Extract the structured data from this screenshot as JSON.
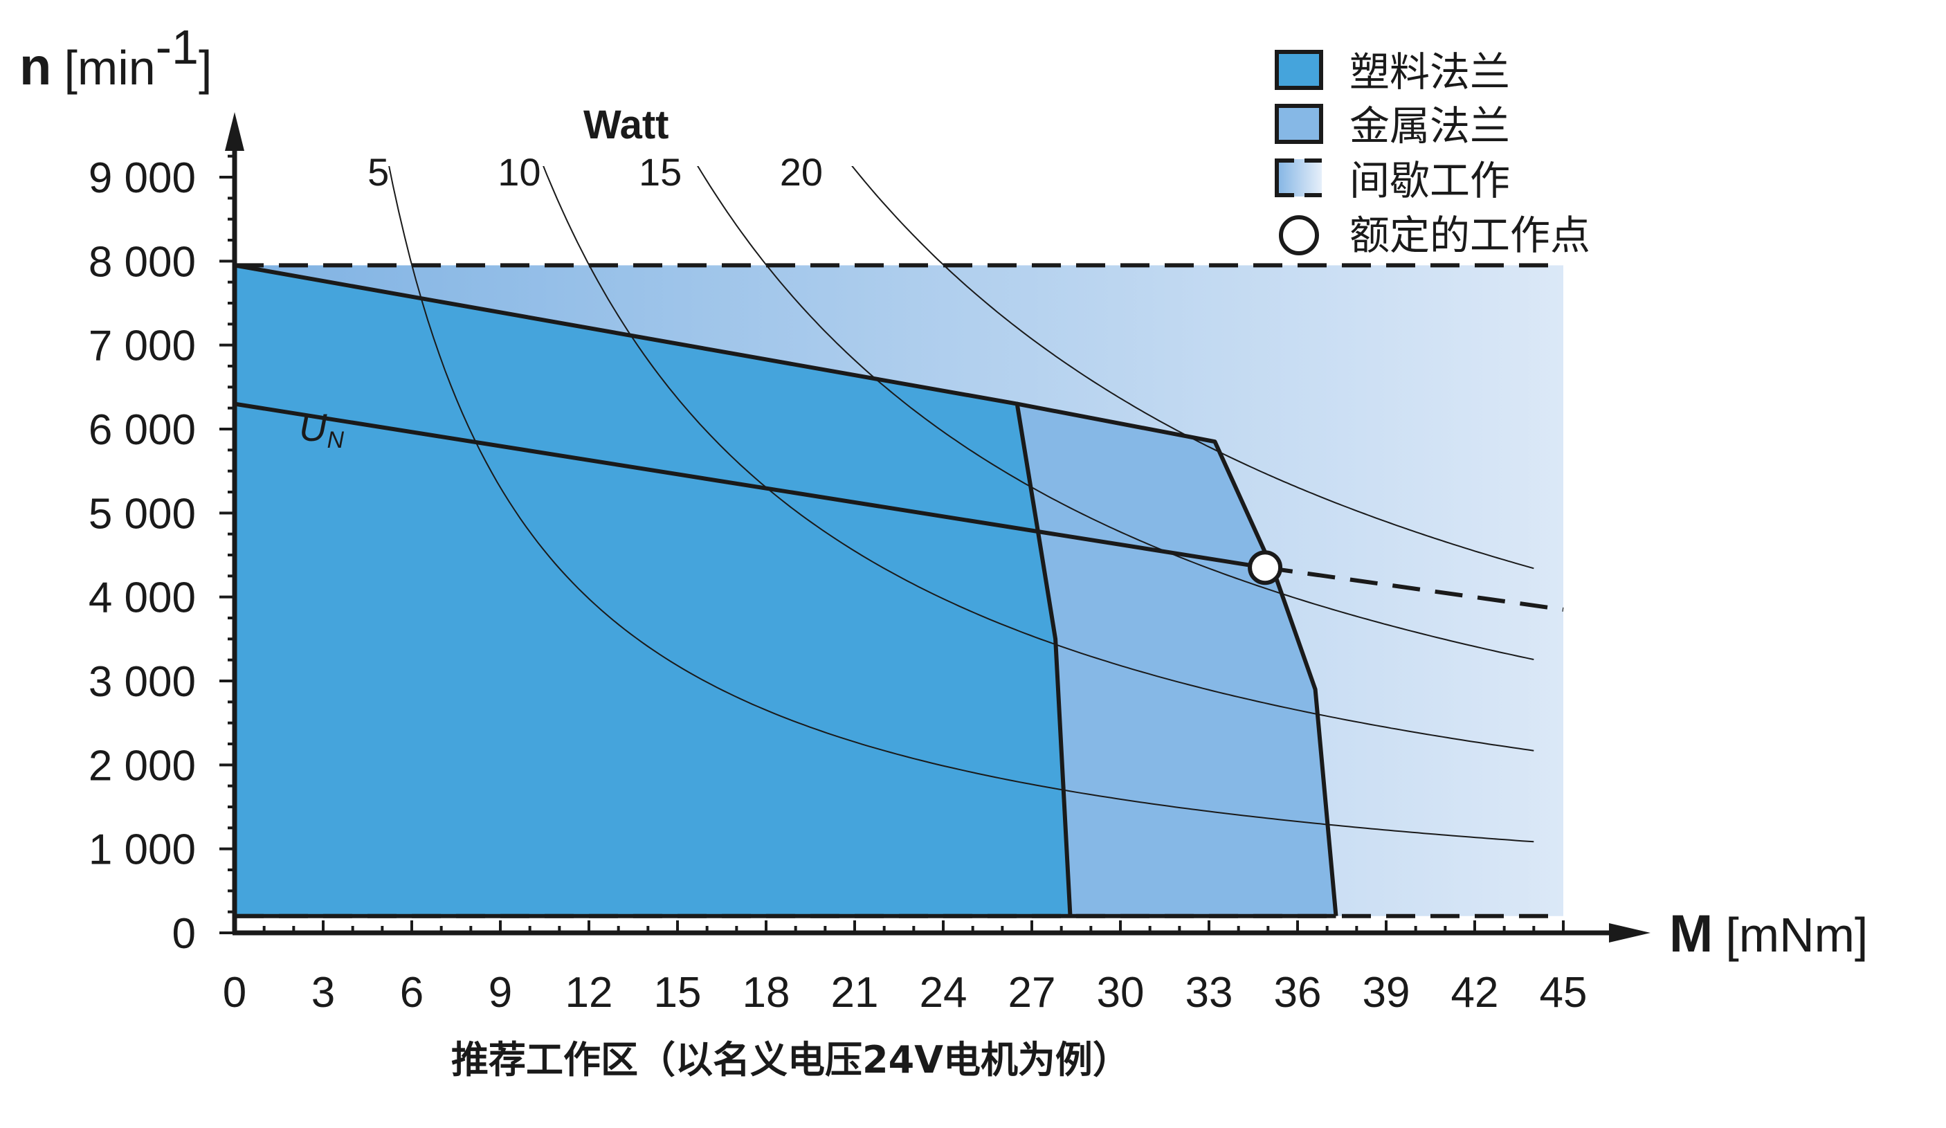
{
  "chart_data": {
    "type": "area",
    "xlabel": {
      "symbol": "M",
      "unit": "[mNm]"
    },
    "ylabel": {
      "symbol": "n",
      "unit_prefix": "[min",
      "unit_sup": "-1",
      "unit_suffix": "]"
    },
    "xlim": [
      0,
      45
    ],
    "ylim": [
      0,
      9000
    ],
    "x_ticks": [
      0,
      3,
      6,
      9,
      12,
      15,
      18,
      21,
      24,
      27,
      30,
      33,
      36,
      39,
      42,
      45
    ],
    "x_tick_labels": [
      "0",
      "3",
      "6",
      "9",
      "12",
      "15",
      "18",
      "21",
      "24",
      "27",
      "30",
      "33",
      "36",
      "39",
      "42",
      "45"
    ],
    "y_ticks": [
      0,
      1000,
      2000,
      3000,
      4000,
      5000,
      6000,
      7000,
      8000,
      9000
    ],
    "y_tick_labels": [
      "0",
      "1 000",
      "2 000",
      "3 000",
      "4 000",
      "5 000",
      "6 000",
      "7 000",
      "8 000",
      "9 000"
    ],
    "power_title": "Watt",
    "power_curves": [
      {
        "label": "5",
        "watts": 5
      },
      {
        "label": "10",
        "watts": 10
      },
      {
        "label": "15",
        "watts": 15
      },
      {
        "label": "20",
        "watts": 20
      }
    ],
    "regions": {
      "plastic_flange": {
        "legend": "塑料法兰",
        "color": "#45a4dc",
        "outline": [
          [
            0,
            7950
          ],
          [
            26.5,
            6300
          ],
          [
            27.2,
            4800
          ],
          [
            27.8,
            3500
          ],
          [
            28.3,
            200
          ],
          [
            0,
            200
          ]
        ]
      },
      "metal_flange": {
        "legend": "金属法兰",
        "color": "#86b8e6",
        "outline": [
          [
            26.5,
            6300
          ],
          [
            33.2,
            5850
          ],
          [
            35.2,
            4300
          ],
          [
            36.6,
            2900
          ],
          [
            37.3,
            200
          ],
          [
            28.3,
            200
          ],
          [
            27.8,
            3500
          ],
          [
            27.2,
            4800
          ]
        ]
      },
      "intermittent": {
        "legend": "间歇工作",
        "color_start": "#7fb2e3",
        "color_end": "#dbe8f7",
        "x_range": [
          0,
          45
        ],
        "y_range": [
          200,
          7950
        ]
      }
    },
    "un_line": {
      "label_main": "U",
      "label_sub": "N",
      "solid": [
        [
          0,
          6300
        ],
        [
          34.9,
          4350
        ]
      ],
      "dashed": [
        [
          34.9,
          4350
        ],
        [
          45,
          3850
        ]
      ]
    },
    "rated_point": {
      "legend": "额定的工作点",
      "x": 34.9,
      "y": 4350
    },
    "caption": "推荐工作区（以名义电压24V电机为例）"
  }
}
